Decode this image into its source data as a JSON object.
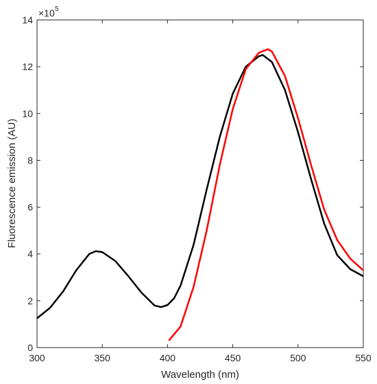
{
  "chart_data": {
    "type": "line",
    "title": "",
    "xlabel": "Wavelength (nm)",
    "ylabel": "Fluorescence emission (AU)",
    "xlim": [
      300,
      550
    ],
    "ylim": [
      0,
      14
    ],
    "y_multiplier_base": "×10",
    "y_multiplier_exponent": "5",
    "x_ticks": [
      "300",
      "350",
      "400",
      "450",
      "500",
      "550"
    ],
    "y_ticks": [
      "0",
      "2",
      "4",
      "6",
      "8",
      "10",
      "12",
      "14"
    ],
    "grid": false,
    "legend": "none",
    "series": [
      {
        "color": "#000000",
        "points": [
          [
            300,
            1.25
          ],
          [
            310,
            1.7
          ],
          [
            320,
            2.4
          ],
          [
            330,
            3.3
          ],
          [
            340,
            4.0
          ],
          [
            345,
            4.12
          ],
          [
            350,
            4.08
          ],
          [
            360,
            3.7
          ],
          [
            370,
            3.05
          ],
          [
            380,
            2.35
          ],
          [
            390,
            1.8
          ],
          [
            395,
            1.73
          ],
          [
            400,
            1.82
          ],
          [
            405,
            2.1
          ],
          [
            410,
            2.65
          ],
          [
            420,
            4.4
          ],
          [
            430,
            6.75
          ],
          [
            440,
            9.0
          ],
          [
            450,
            10.85
          ],
          [
            460,
            12.0
          ],
          [
            470,
            12.45
          ],
          [
            473,
            12.5
          ],
          [
            480,
            12.2
          ],
          [
            490,
            11.0
          ],
          [
            500,
            9.2
          ],
          [
            510,
            7.2
          ],
          [
            520,
            5.3
          ],
          [
            530,
            3.95
          ],
          [
            540,
            3.35
          ],
          [
            550,
            3.05
          ]
        ]
      },
      {
        "color": "#ff0000",
        "points": [
          [
            401,
            0.3
          ],
          [
            410,
            0.9
          ],
          [
            420,
            2.6
          ],
          [
            430,
            5.0
          ],
          [
            440,
            7.8
          ],
          [
            450,
            10.2
          ],
          [
            460,
            11.9
          ],
          [
            470,
            12.6
          ],
          [
            477,
            12.75
          ],
          [
            480,
            12.65
          ],
          [
            490,
            11.6
          ],
          [
            500,
            9.8
          ],
          [
            510,
            7.8
          ],
          [
            520,
            5.9
          ],
          [
            530,
            4.6
          ],
          [
            540,
            3.8
          ],
          [
            550,
            3.3
          ]
        ]
      }
    ]
  }
}
